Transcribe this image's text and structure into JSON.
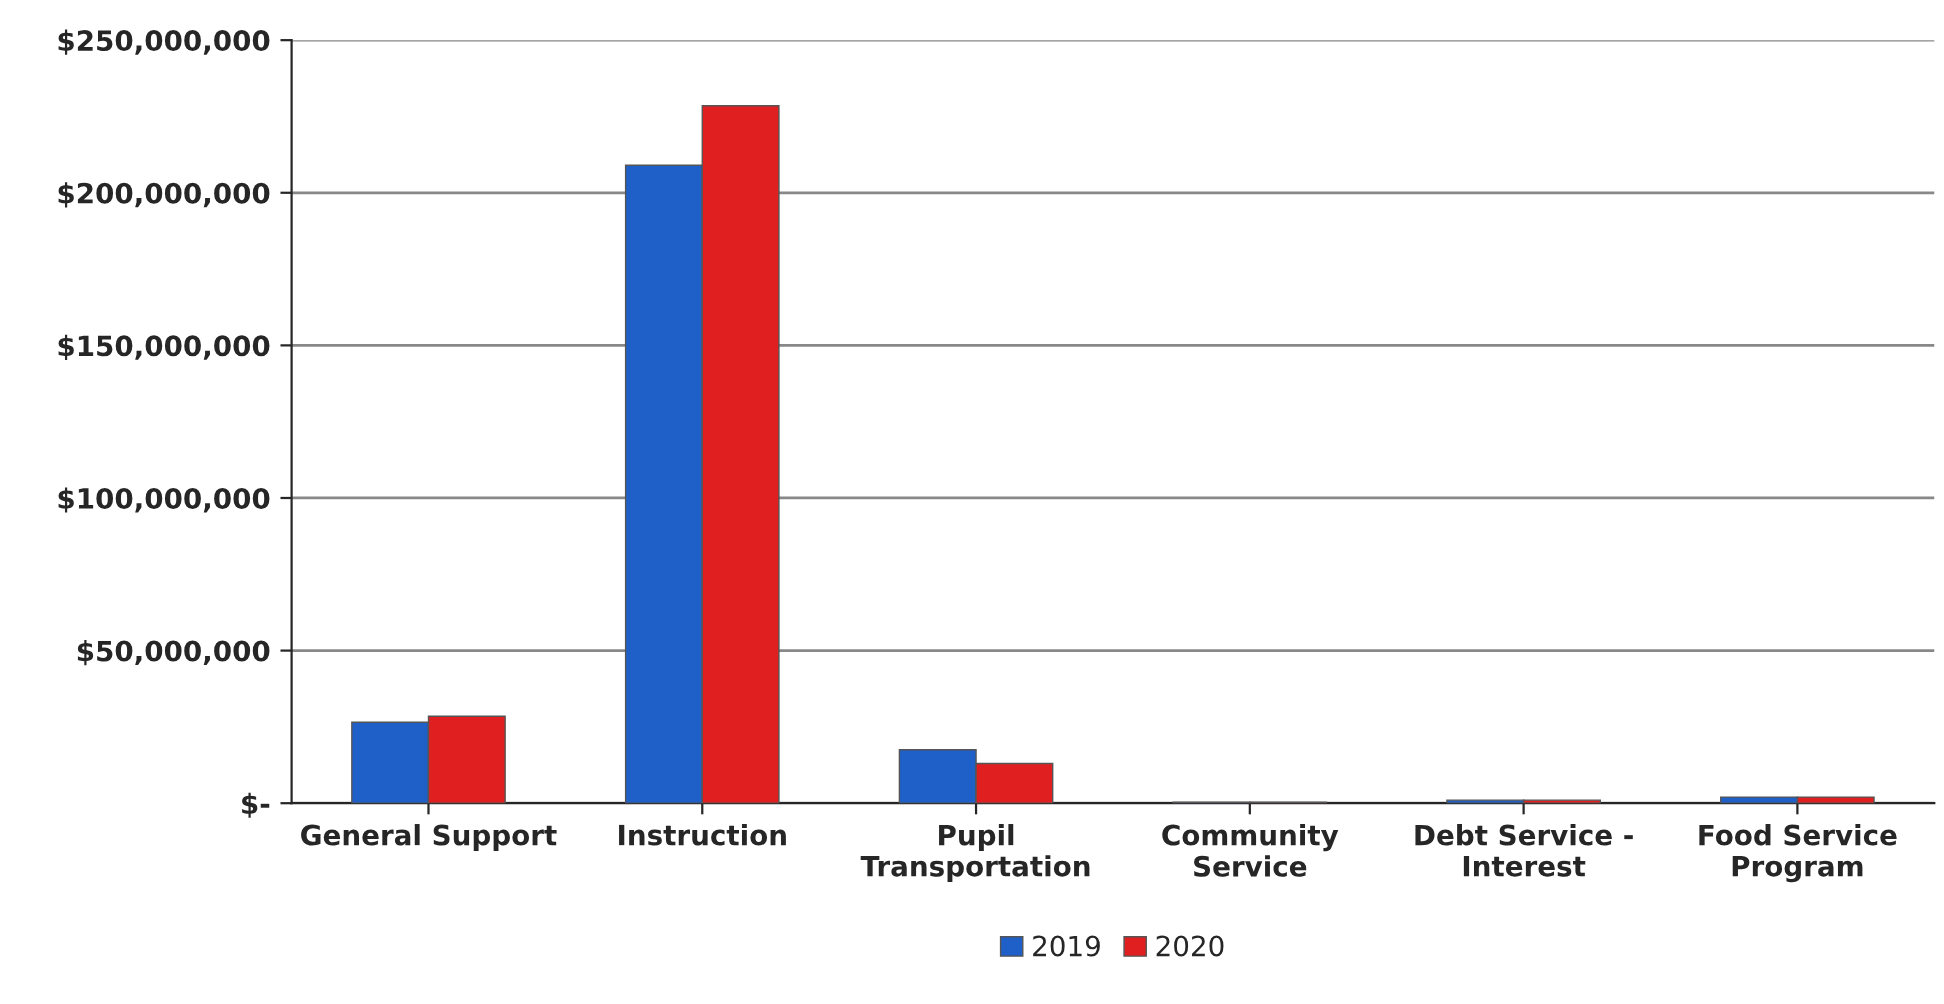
{
  "chart_data": {
    "type": "bar",
    "categories": [
      "General Support",
      "Instruction",
      "Pupil\nTransportation",
      "Community\nService",
      "Debt Service -\nInterest",
      "Food Service\nProgram"
    ],
    "series": [
      {
        "name": "2019",
        "color": "#1f5fc8",
        "values": [
          26500000,
          209000000,
          17500000,
          300000,
          1000000,
          2000000
        ]
      },
      {
        "name": "2020",
        "color": "#e02020",
        "values": [
          28500000,
          228500000,
          13000000,
          300000,
          1000000,
          2000000
        ]
      }
    ],
    "ylim": [
      0,
      250000000
    ],
    "yticks": [
      {
        "value": 0,
        "label": "$-"
      },
      {
        "value": 50000000,
        "label": "$50,000,000"
      },
      {
        "value": 100000000,
        "label": "$100,000,000"
      },
      {
        "value": 150000000,
        "label": "$150,000,000"
      },
      {
        "value": 200000000,
        "label": "$200,000,000"
      },
      {
        "value": 250000000,
        "label": "$250,000,000"
      }
    ],
    "grid": "y",
    "legend": "bottom"
  }
}
